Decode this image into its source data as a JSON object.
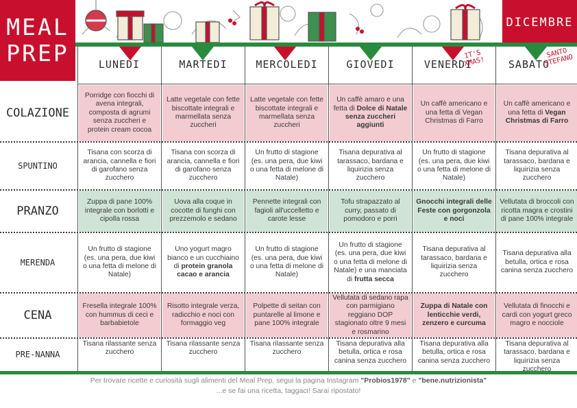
{
  "title": {
    "line1": "MEAL",
    "line2": "PREP"
  },
  "month": "DICEMBRE",
  "days": [
    "LUNEDI",
    "MARTEDI",
    "MERCOLEDI",
    "GIOVEDI",
    "VENERDI",
    "SABATO"
  ],
  "day_tags": {
    "friday": "IT'S XMAS!",
    "saturday": "SANTO STEFANO"
  },
  "rows": [
    {
      "label": "COLAZIONE",
      "cells": [
        "Porridge con fiocchi di avena integrali, composta di agrumi senza zuccheri e protein cream cocoa",
        "Latte vegetale con fette biscottate integrali e marmellata senza zuccheri",
        "Latte vegetale con fette biscottate integrali e marmellata senza zuccheri",
        "Un caffè amaro e una fetta di <b>Dolce di Natale senza zuccheri aggiunti</b>",
        "Un caffè americano e una fetta di Vegan Christmas di Farro",
        "Un caffè americano e una fetta di <b>Vegan Christmas di Farro</b>"
      ]
    },
    {
      "label": "SPUNTINO",
      "cells": [
        "Tisana con scorza di arancia, cannella e fiori di garofano senza zucchero",
        "Tisana con scorza di arancia, cannella e fiori di garofano senza zucchero",
        "Un frutto di stagione (es. una pera, due kiwi o una fetta di melone di Natale)",
        "Tisana depurativa al tarassaco, bardana e liquirizia senza zucchero",
        "Un frutto di stagione (es. una pera, due kiwi o una fetta di melone di Natale)",
        "Tisana depurativa al tarassaco, bardana e liquirizia senza zucchero"
      ]
    },
    {
      "label": "PRANZO",
      "cells": [
        "Zuppa di pane 100% integrale con borlotti e cipolla rossa",
        "Uova alla coque in cocotte di funghi con prezzemolo e sedano",
        "Pennette integrali con fagioli all'uccelletto e carote lesse",
        "Tofu strapazzato al curry, passato di pomodoro e porri",
        "<b>Gnocchi integrali delle Feste con gorgonzola e noci</b>",
        "Vellutata di broccoli con ricotta magra e crostini di pane 100% integrale"
      ]
    },
    {
      "label": "MERENDA",
      "cells": [
        "Un frutto di stagione (es. una pera, due kiwi o una fetta di melone di Natale)",
        "Uno yogurt magro bianco e un cucchiaino di <b>protein granola cacao e arancia</b>",
        "Un frutto di stagione (es. una pera, due kiwi o una fetta di melone di Natale)",
        "Un frutto di stagione (es. una pera, due kiwi o una fetta di melone di Natale) e una manciata di <b>frutta secca</b>",
        "Tisana depurativa al tarassaco, bardana e liquirizia senza zucchero",
        "Tisana depurativa alla betulla, ortica e rosa canina senza zucchero"
      ]
    },
    {
      "label": "CENA",
      "cells": [
        "Fresella integrale 100% con hummus di ceci e barbabietole",
        "Risotto integrale verza, radicchio e noci con formaggio veg",
        "Polpette di seitan con puntarelle al limone e pane 100% integrale",
        "Vellutata di sedano rapa con parmigiano reggiano DOP stagionato oltre 9 mesi e rosmarino",
        "<b>Zuppa di Natale con lenticchie verdi, zenzero e curcuma</b>",
        "Vellutata di finocchi e cardi con yogurt greco magro e nocciole"
      ]
    },
    {
      "label": "PRE-NANNA",
      "cells": [
        "Tisana rilassante senza zucchero",
        "Tisana rilassante senza zucchero",
        "Tisana rilassante senza zucchero",
        "Tisana depurativa alla betulla, ortica e rosa canina senza zucchero",
        "Tisana depurativa alla betulla, ortica e rosa canina senza zucchero",
        "Tisana depurativa al tarassaco, bardana e liquirizia senza zucchero"
      ]
    }
  ],
  "footer": {
    "line1_pre": "Per trovare ricette e curiosità sugli alimenti del Meal Prep, segui la pagina Instagram ",
    "handle1": "\"Probios1978\"",
    "line1_mid": " e ",
    "handle2": "\"bene.nutrizionista\"",
    "line2": "...e se fai una ricetta, taggaci! Sarai ripostato!"
  },
  "colors": {
    "red": "#c8102e",
    "green": "#2a8a3e",
    "pink_cell": "#f2ccd1",
    "green_cell": "#cfe3d6"
  },
  "row_highlight": [
    "pink",
    "plain",
    "green",
    "plain",
    "pink",
    "plain"
  ],
  "decorations": [
    "gift-icon",
    "ornament-icon",
    "holly-icon",
    "berry-icon"
  ]
}
